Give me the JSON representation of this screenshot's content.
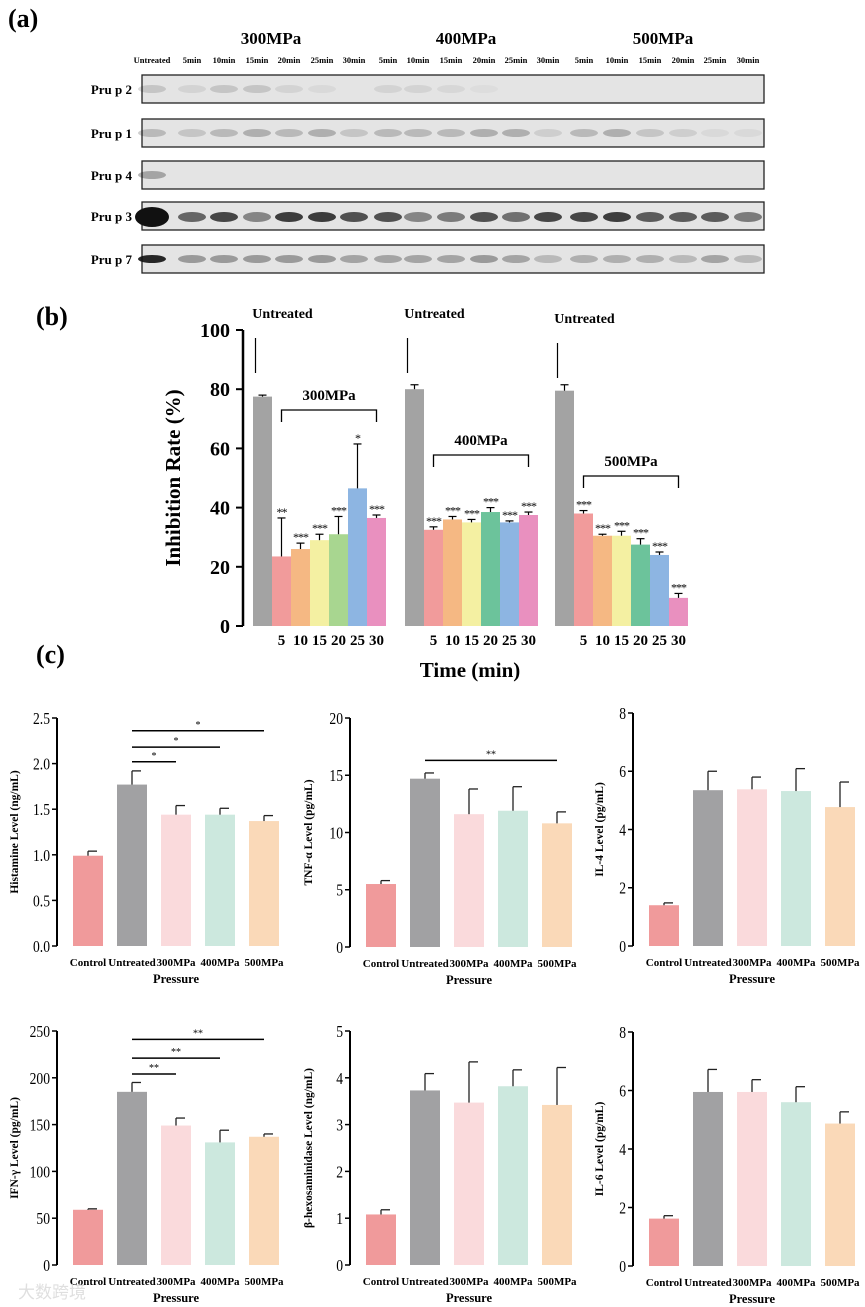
{
  "panel_labels": {
    "a": "(a)",
    "b": "(b)",
    "c": "(c)"
  },
  "watermark": "大数跨境",
  "blot": {
    "group_titles": [
      "300MPa",
      "400MPa",
      "500MPa"
    ],
    "lanes": [
      "Untreated",
      "5min",
      "10min",
      "15min",
      "20min",
      "25min",
      "30min",
      "5min",
      "10min",
      "15min",
      "20min",
      "25min",
      "30min",
      "5min",
      "10min",
      "15min",
      "20min",
      "25min",
      "30min"
    ],
    "rows": [
      {
        "name": "Pru p 2",
        "intensity": [
          0.15,
          0.08,
          0.15,
          0.15,
          0.08,
          0.05,
          0,
          0.08,
          0.08,
          0.06,
          0.03,
          0,
          0,
          0,
          0,
          0,
          0,
          0,
          0
        ]
      },
      {
        "name": "Pru p 1",
        "intensity": [
          0.2,
          0.15,
          0.2,
          0.25,
          0.2,
          0.25,
          0.15,
          0.2,
          0.2,
          0.2,
          0.25,
          0.25,
          0.1,
          0.2,
          0.25,
          0.15,
          0.1,
          0.05,
          0.05
        ]
      },
      {
        "name": "Pru p 4",
        "intensity": [
          0.3,
          0,
          0,
          0,
          0,
          0,
          0,
          0,
          0,
          0,
          0,
          0,
          0,
          0,
          0,
          0,
          0,
          0,
          0
        ]
      },
      {
        "name": "Pru p 3",
        "intensity": [
          1,
          0.6,
          0.75,
          0.45,
          0.8,
          0.8,
          0.7,
          0.7,
          0.45,
          0.5,
          0.7,
          0.55,
          0.75,
          0.75,
          0.8,
          0.65,
          0.65,
          0.65,
          0.5
        ]
      },
      {
        "name": "Pru p 7",
        "intensity": [
          0.9,
          0.35,
          0.35,
          0.35,
          0.35,
          0.35,
          0.3,
          0.3,
          0.3,
          0.3,
          0.35,
          0.3,
          0.2,
          0.25,
          0.25,
          0.25,
          0.2,
          0.3,
          0.2
        ]
      }
    ]
  },
  "chart_data": [
    {
      "type": "bar",
      "id": "inhibition",
      "ylabel": "Inhibition Rate (%)",
      "xlabel": "Time (min)",
      "ylim": [
        0,
        100
      ],
      "yticks": [
        0,
        20,
        40,
        60,
        80,
        100
      ],
      "categories": [
        "Untreated",
        "5",
        "10",
        "15",
        "20",
        "25",
        "30"
      ],
      "untreated_label": "Untreated",
      "groups": [
        {
          "name": "300MPa",
          "values": [
            77.5,
            23.5,
            26,
            29,
            31,
            46.5,
            36.5
          ],
          "errors": [
            0.5,
            13,
            2,
            2,
            6,
            15,
            1
          ],
          "sig": [
            "",
            "**",
            "***",
            "***",
            "***",
            "*",
            "***"
          ],
          "colors": [
            "#a3a3a3",
            "#f19b9b",
            "#f5b883",
            "#f4f0a2",
            "#a8d690",
            "#8db5e2",
            "#e990bf"
          ]
        },
        {
          "name": "400MPa",
          "values": [
            80,
            32.5,
            36,
            35,
            38.5,
            35,
            37.5
          ],
          "errors": [
            1.5,
            1,
            1,
            1,
            1.5,
            0.5,
            1
          ],
          "sig": [
            "",
            "***",
            "***",
            "***",
            "***",
            "***",
            "***"
          ],
          "colors": [
            "#a3a3a3",
            "#f19b9b",
            "#f5b883",
            "#f4f0a2",
            "#6cc39b",
            "#8db5e2",
            "#e990bf"
          ]
        },
        {
          "name": "500MPa",
          "values": [
            79.5,
            38,
            30.5,
            30.5,
            27.5,
            24,
            9.5
          ],
          "errors": [
            2,
            1,
            0.5,
            1.5,
            2,
            1,
            1.5
          ],
          "sig": [
            "",
            "***",
            "***",
            "***",
            "***",
            "***",
            "***"
          ],
          "colors": [
            "#a3a3a3",
            "#f19b9b",
            "#f5b883",
            "#f4f0a2",
            "#6cc39b",
            "#8db5e2",
            "#e990bf"
          ]
        }
      ]
    },
    {
      "type": "bar",
      "id": "histamine",
      "ylabel": "Histamine Level (ng/mL)",
      "xlabel": "Pressure",
      "ylim": [
        0,
        2.5
      ],
      "yticks": [
        "0.0",
        "0.5",
        "1.0",
        "1.5",
        "2.0",
        "2.5"
      ],
      "categories": [
        "Control",
        "Untreated",
        "300MPa",
        "400MPa",
        "500MPa"
      ],
      "values": [
        0.99,
        1.77,
        1.44,
        1.44,
        1.37
      ],
      "errors": [
        0.05,
        0.15,
        0.1,
        0.07,
        0.06
      ],
      "comparisons": [
        {
          "from": 1,
          "to": 2,
          "level": 2.02,
          "sig": "*"
        },
        {
          "from": 1,
          "to": 3,
          "level": 2.18,
          "sig": "*"
        },
        {
          "from": 1,
          "to": 4,
          "level": 2.36,
          "sig": "*"
        }
      ]
    },
    {
      "type": "bar",
      "id": "tnf",
      "ylabel": "TNF-α Level (pg/mL)",
      "xlabel": "Pressure",
      "ylim": [
        0,
        20
      ],
      "yticks": [
        "0",
        "5",
        "10",
        "15",
        "20"
      ],
      "categories": [
        "Control",
        "Untreated",
        "300MPa",
        "400MPa",
        "500MPa"
      ],
      "values": [
        5.5,
        14.7,
        11.6,
        11.9,
        10.8
      ],
      "errors": [
        0.3,
        0.5,
        2.2,
        2.1,
        1.0
      ],
      "comparisons": [
        {
          "from": 1,
          "to": 4,
          "level": 16.3,
          "sig": "**"
        }
      ]
    },
    {
      "type": "bar",
      "id": "il4",
      "ylabel": "IL-4 Level (pg/mL)",
      "xlabel": "Pressure",
      "ylim": [
        0,
        8
      ],
      "yticks": [
        "0",
        "2",
        "4",
        "6",
        "8"
      ],
      "categories": [
        "Control",
        "Untreated",
        "300MPa",
        "400MPa",
        "500MPa"
      ],
      "values": [
        1.4,
        5.35,
        5.38,
        5.32,
        4.77
      ],
      "errors": [
        0.08,
        0.65,
        0.42,
        0.77,
        0.86
      ],
      "comparisons": []
    },
    {
      "type": "bar",
      "id": "ifn",
      "ylabel": "IFN-γ Level (pg/mL)",
      "xlabel": "Pressure",
      "ylim": [
        0,
        250
      ],
      "yticks": [
        "0",
        "50",
        "100",
        "150",
        "200",
        "250"
      ],
      "categories": [
        "Control",
        "Untreated",
        "300MPa",
        "400MPa",
        "500MPa"
      ],
      "values": [
        59,
        185,
        149,
        131,
        137
      ],
      "errors": [
        1,
        10,
        8,
        13,
        3
      ],
      "comparisons": [
        {
          "from": 1,
          "to": 2,
          "level": 204,
          "sig": "**"
        },
        {
          "from": 1,
          "to": 3,
          "level": 221,
          "sig": "**"
        },
        {
          "from": 1,
          "to": 4,
          "level": 241,
          "sig": "**"
        }
      ]
    },
    {
      "type": "bar",
      "id": "bhex",
      "ylabel": "β-hexosaminidase Level (ng/mL)",
      "xlabel": "Pressure",
      "ylim": [
        0,
        5
      ],
      "yticks": [
        "0",
        "1",
        "2",
        "3",
        "4",
        "5"
      ],
      "categories": [
        "Control",
        "Untreated",
        "300MPa",
        "400MPa",
        "500MPa"
      ],
      "values": [
        1.08,
        3.73,
        3.47,
        3.82,
        3.42
      ],
      "errors": [
        0.1,
        0.36,
        0.87,
        0.35,
        0.8
      ],
      "comparisons": []
    },
    {
      "type": "bar",
      "id": "il6",
      "ylabel": "IL-6 Level (pg/mL)",
      "xlabel": "Pressure",
      "ylim": [
        0,
        8
      ],
      "yticks": [
        "0",
        "2",
        "4",
        "6",
        "8"
      ],
      "categories": [
        "Control",
        "Untreated",
        "300MPa",
        "400MPa",
        "500MPa"
      ],
      "values": [
        1.62,
        5.95,
        5.95,
        5.6,
        4.87
      ],
      "errors": [
        0.1,
        0.77,
        0.42,
        0.53,
        0.4
      ],
      "comparisons": []
    }
  ],
  "cytokine_colors": [
    "#f09a9b",
    "#a1a1a3",
    "#fadadc",
    "#cce8de",
    "#fad9b8"
  ]
}
